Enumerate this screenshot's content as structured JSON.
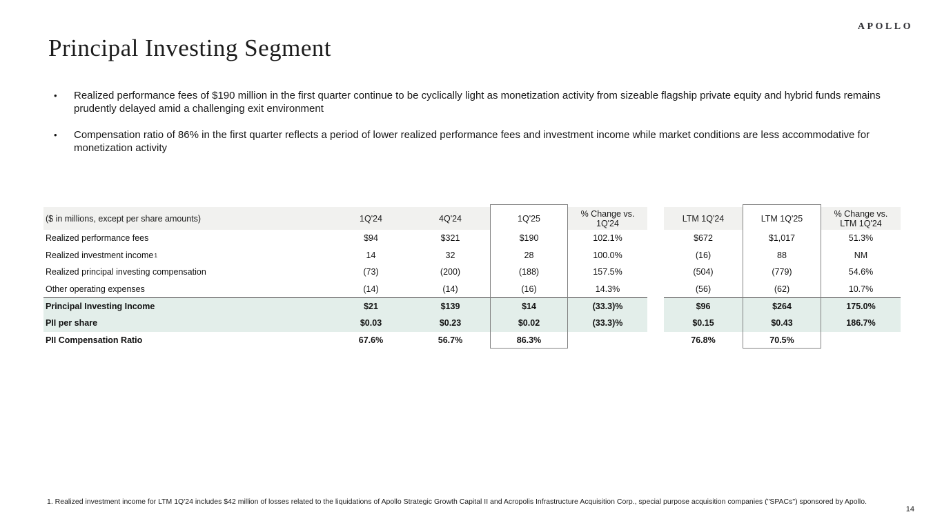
{
  "logo": "APOLLO",
  "title": "Principal Investing Segment",
  "bullets": [
    {
      "text": "Realized performance fees of $190 million in the first quarter continue to be cyclically light as monetization activity from sizeable flagship private equity and hybrid funds remains prudently delayed amid a challenging exit environment"
    },
    {
      "text": "Compensation ratio of 86% in the first quarter reflects a period of lower realized performance fees and investment income while market conditions are less accommodative for monetization activity"
    }
  ],
  "table": {
    "unit_label": "($ in millions, except per share amounts)",
    "column_headers": [
      "1Q'24",
      "4Q'24",
      "1Q'25",
      "% Change vs.\n1Q'24",
      "LTM 1Q'24",
      "LTM 1Q'25",
      "% Change vs.\nLTM 1Q'24"
    ],
    "rows": [
      {
        "label": "Realized performance fees",
        "values": [
          "$94",
          "$321",
          "$190",
          "102.1%",
          "$672",
          "$1,017",
          "51.3%"
        ]
      },
      {
        "label": "Realized investment income",
        "sup": "1",
        "values": [
          "14",
          "32",
          "28",
          "100.0%",
          "(16)",
          "88",
          "NM"
        ]
      },
      {
        "label": "Realized principal investing compensation",
        "values": [
          "(73)",
          "(200)",
          "(188)",
          "157.5%",
          "(504)",
          "(779)",
          "54.6%"
        ]
      },
      {
        "label": "Other operating expenses",
        "values": [
          "(14)",
          "(14)",
          "(16)",
          "14.3%",
          "(56)",
          "(62)",
          "10.7%"
        ]
      },
      {
        "label": "Principal Investing Income",
        "bold": true,
        "highlight": true,
        "topline": true,
        "values": [
          "$21",
          "$139",
          "$14",
          "(33.3)%",
          "$96",
          "$264",
          "175.0%"
        ]
      },
      {
        "label": "PII per share",
        "bold": true,
        "highlight": true,
        "values": [
          "$0.03",
          "$0.23",
          "$0.02",
          "(33.3)%",
          "$0.15",
          "$0.43",
          "186.7%"
        ]
      },
      {
        "label": "PII Compensation Ratio",
        "bold": true,
        "values": [
          "67.6%",
          "56.7%",
          "86.3%",
          "",
          "76.8%",
          "70.5%",
          ""
        ]
      }
    ]
  },
  "footnote": "1. Realized investment income for LTM 1Q'24 includes $42 million of losses related to the liquidations of Apollo Strategic Growth Capital II and Acropolis Infrastructure Acquisition Corp., special purpose acquisition companies (\"SPACs\") sponsored by Apollo.",
  "page_number": "14",
  "colors": {
    "header_bg": "#f1f1ef",
    "highlight_bg": "#e3eeea",
    "box_border": "#7f7f7f",
    "rule": "#3f3f3f"
  }
}
